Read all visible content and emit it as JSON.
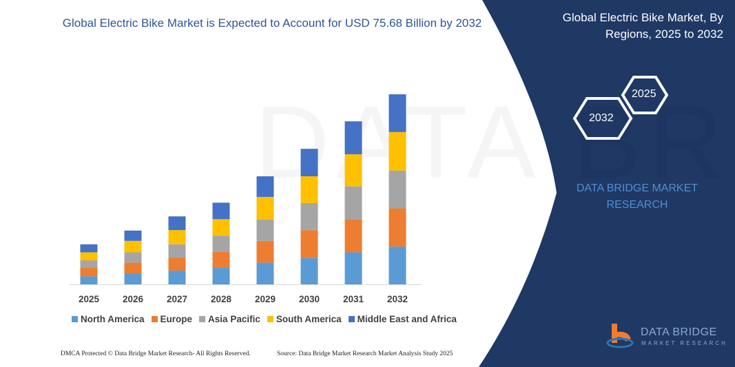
{
  "title": "Global Electric Bike Market is Expected to Account for USD 75.68 Billion by 2032",
  "side_panel": {
    "title": "Global Electric Bike Market, By Regions, 2025 to 2032",
    "hex_start": "2025",
    "hex_end": "2032",
    "brand": "DATA BRIDGE MARKET RESEARCH"
  },
  "footer": {
    "left": "DMCA Protected © Data Bridge Market Research- All Rights Reserved.",
    "right": "Source: Data Bridge Market Research Market Analysis Study 2025"
  },
  "logo": {
    "line1": "DATA BRIDGE",
    "line2": "MARKET RESEARCH"
  },
  "watermark": "DATA BRIDGE",
  "colors": {
    "panel": "#1f3864",
    "title": "#2f5597",
    "brand": "#4f8fd4"
  },
  "chart_data": {
    "type": "bar",
    "stacked": true,
    "title": "Global Electric Bike Market is Expected to Account for USD 75.68 Billion by 2032",
    "xlabel": "",
    "ylabel": "",
    "ylim": [
      0,
      75.68
    ],
    "grid": false,
    "legend": "bottom",
    "categories": [
      "2025",
      "2026",
      "2027",
      "2028",
      "2029",
      "2030",
      "2031",
      "2032"
    ],
    "series": [
      {
        "name": "North America",
        "color": "#5b9bd5",
        "values": [
          3.19,
          4.38,
          5.47,
          6.56,
          8.66,
          10.49,
          12.77,
          15.05
        ]
      },
      {
        "name": "Europe",
        "color": "#ed7d31",
        "values": [
          3.37,
          4.29,
          5.2,
          6.38,
          8.66,
          11.12,
          13.22,
          15.23
        ]
      },
      {
        "name": "Asia Pacific",
        "color": "#a5a5a5",
        "values": [
          3.01,
          4.1,
          5.29,
          6.47,
          8.48,
          10.76,
          13.04,
          15.05
        ]
      },
      {
        "name": "South America",
        "color": "#ffc000",
        "values": [
          3.19,
          4.56,
          5.65,
          6.56,
          9.03,
          10.67,
          12.77,
          15.32
        ]
      },
      {
        "name": "Middle East and Africa",
        "color": "#4472c4",
        "values": [
          3.19,
          4.1,
          5.47,
          6.56,
          8.21,
          10.94,
          13.13,
          15.05
        ]
      }
    ]
  }
}
